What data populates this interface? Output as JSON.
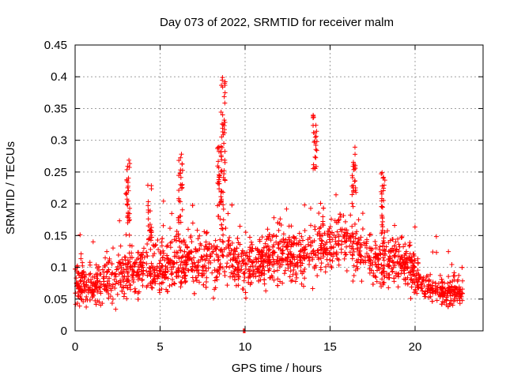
{
  "chart_data": {
    "type": "scatter",
    "title": "Day 073 of 2022, SRMTID for receiver malm",
    "xlabel": "GPS time / hours",
    "ylabel": "SRMTID / TECUs",
    "xlim": [
      0,
      24
    ],
    "ylim": [
      0,
      0.45
    ],
    "xticks": [
      0,
      5,
      10,
      15,
      20
    ],
    "xtick_labels": [
      "0",
      "5",
      "10",
      "15",
      "20"
    ],
    "yticks": [
      0,
      0.05,
      0.1,
      0.15,
      0.2,
      0.25,
      0.3,
      0.35,
      0.4,
      0.45
    ],
    "ytick_labels": [
      "0",
      "0.05",
      "0.1",
      "0.15",
      "0.2",
      "0.25",
      "0.3",
      "0.35",
      "0.4",
      "0.45"
    ],
    "grid": true,
    "marker": "+",
    "color": "#ff0000",
    "series": [
      {
        "name": "SRMTID",
        "trend": [
          {
            "x": 0.0,
            "y": 0.08,
            "spread": 0.04
          },
          {
            "x": 1.0,
            "y": 0.07,
            "spread": 0.035
          },
          {
            "x": 2.0,
            "y": 0.08,
            "spread": 0.04
          },
          {
            "x": 3.0,
            "y": 0.09,
            "spread": 0.045
          },
          {
            "x": 4.0,
            "y": 0.1,
            "spread": 0.045
          },
          {
            "x": 5.0,
            "y": 0.1,
            "spread": 0.045
          },
          {
            "x": 6.0,
            "y": 0.11,
            "spread": 0.045
          },
          {
            "x": 7.0,
            "y": 0.11,
            "spread": 0.045
          },
          {
            "x": 8.0,
            "y": 0.11,
            "spread": 0.045
          },
          {
            "x": 9.0,
            "y": 0.12,
            "spread": 0.045
          },
          {
            "x": 10.0,
            "y": 0.1,
            "spread": 0.05
          },
          {
            "x": 11.0,
            "y": 0.11,
            "spread": 0.045
          },
          {
            "x": 12.0,
            "y": 0.12,
            "spread": 0.045
          },
          {
            "x": 13.0,
            "y": 0.12,
            "spread": 0.045
          },
          {
            "x": 14.0,
            "y": 0.13,
            "spread": 0.045
          },
          {
            "x": 15.0,
            "y": 0.14,
            "spread": 0.045
          },
          {
            "x": 16.0,
            "y": 0.14,
            "spread": 0.045
          },
          {
            "x": 17.0,
            "y": 0.12,
            "spread": 0.045
          },
          {
            "x": 18.0,
            "y": 0.11,
            "spread": 0.045
          },
          {
            "x": 19.0,
            "y": 0.11,
            "spread": 0.04
          },
          {
            "x": 20.0,
            "y": 0.09,
            "spread": 0.035
          },
          {
            "x": 21.0,
            "y": 0.065,
            "spread": 0.025
          },
          {
            "x": 22.0,
            "y": 0.06,
            "spread": 0.025
          },
          {
            "x": 22.8,
            "y": 0.06,
            "spread": 0.025
          }
        ],
        "x_range": [
          0.0,
          22.8
        ],
        "n_points": 2200,
        "spikes": [
          {
            "x": 3.1,
            "ymin": 0.13,
            "ymax": 0.27
          },
          {
            "x": 4.4,
            "ymin": 0.14,
            "ymax": 0.23
          },
          {
            "x": 6.2,
            "ymin": 0.17,
            "ymax": 0.28
          },
          {
            "x": 8.5,
            "ymin": 0.18,
            "ymax": 0.29
          },
          {
            "x": 8.7,
            "ymin": 0.19,
            "ymax": 0.4
          },
          {
            "x": 14.1,
            "ymin": 0.25,
            "ymax": 0.34
          },
          {
            "x": 16.4,
            "ymin": 0.2,
            "ymax": 0.29
          },
          {
            "x": 18.1,
            "ymin": 0.15,
            "ymax": 0.25
          }
        ],
        "zero_points": [
          {
            "x": 9.9,
            "y": 0.0
          },
          {
            "x": 9.95,
            "y": 0.0
          },
          {
            "x": 10.0,
            "y": 0.0
          }
        ]
      }
    ]
  }
}
